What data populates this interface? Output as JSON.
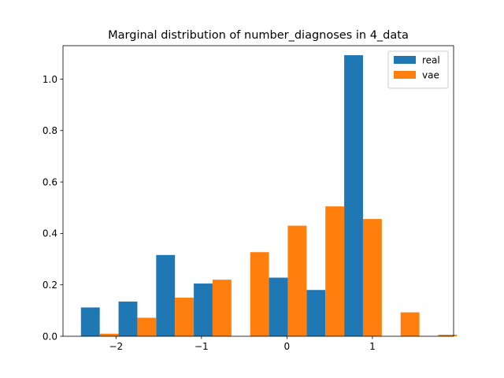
{
  "chart_data": {
    "type": "bar",
    "title": "Marginal distribution of number_diagnoses in 4_data",
    "xlabel": "",
    "ylabel": "",
    "xlim": [
      -2.62,
      1.95
    ],
    "ylim": [
      0,
      1.13
    ],
    "xticks": [
      -2,
      -1,
      0,
      1
    ],
    "xtick_labels": [
      "−2",
      "−1",
      "0",
      "1"
    ],
    "yticks": [
      0,
      0.2,
      0.4,
      0.6,
      0.8,
      1.0
    ],
    "ytick_labels": [
      "0.0",
      "0.2",
      "0.4",
      "0.6",
      "0.8",
      "1.0"
    ],
    "bin_width": 0.44,
    "bin_starts": [
      -2.41,
      -1.97,
      -1.53,
      -1.09,
      -0.65,
      -0.21,
      0.23,
      0.67,
      1.11,
      1.55
    ],
    "series": [
      {
        "name": "real",
        "color": "#1f77b4",
        "values": [
          0.112,
          0.135,
          0.316,
          0.205,
          0.0,
          0.228,
          0.18,
          1.093,
          0.0,
          0.0
        ]
      },
      {
        "name": "vae",
        "color": "#ff7f0e",
        "values": [
          0.01,
          0.072,
          0.15,
          0.22,
          0.327,
          0.43,
          0.505,
          0.456,
          0.093,
          0.006
        ]
      }
    ],
    "legend_position": "top-right",
    "grid": false
  }
}
